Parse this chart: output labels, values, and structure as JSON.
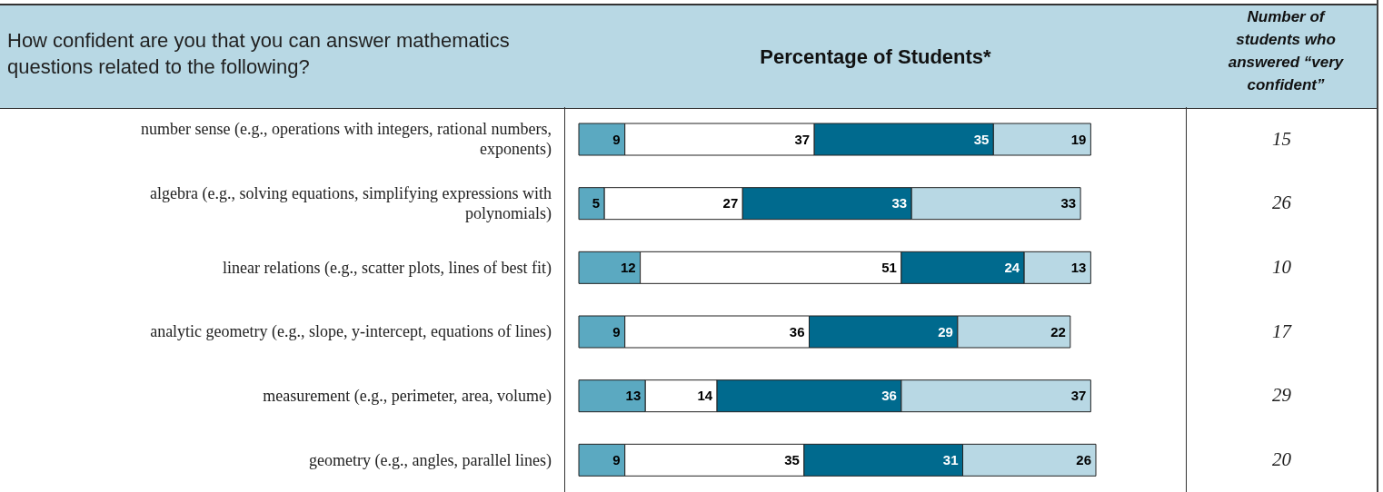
{
  "chart_data": {
    "type": "bar",
    "orientation": "horizontal",
    "stacked": true,
    "title": "Percentage of Students*",
    "ylabel": "How confident are you that you can answer mathematics questions related to the following?",
    "categories": [
      "number sense (e.g., operations with integers, rational numbers, exponents)",
      "algebra (e.g., solving equations, simplifying expressions with polynomials)",
      "linear relations (e.g., scatter plots, lines of best fit)",
      "analytic geometry (e.g., slope, y-intercept, equations of lines)",
      "measurement (e.g., perimeter, area, volume)",
      "geometry (e.g., angles, parallel lines)"
    ],
    "series": [
      {
        "color": "#5ba9c1",
        "values": [
          9,
          5,
          12,
          9,
          13,
          9
        ]
      },
      {
        "color": "#ffffff",
        "values": [
          37,
          27,
          51,
          36,
          14,
          35
        ]
      },
      {
        "color": "#006a8e",
        "values": [
          35,
          33,
          24,
          29,
          36,
          31
        ]
      },
      {
        "color": "#b8d8e4",
        "values": [
          19,
          33,
          13,
          22,
          37,
          26
        ]
      }
    ],
    "data_labels": true,
    "annotations": [
      "Number of students who answered “very confident”",
      "15",
      "26",
      "10",
      "17",
      "29",
      "20"
    ]
  }
}
